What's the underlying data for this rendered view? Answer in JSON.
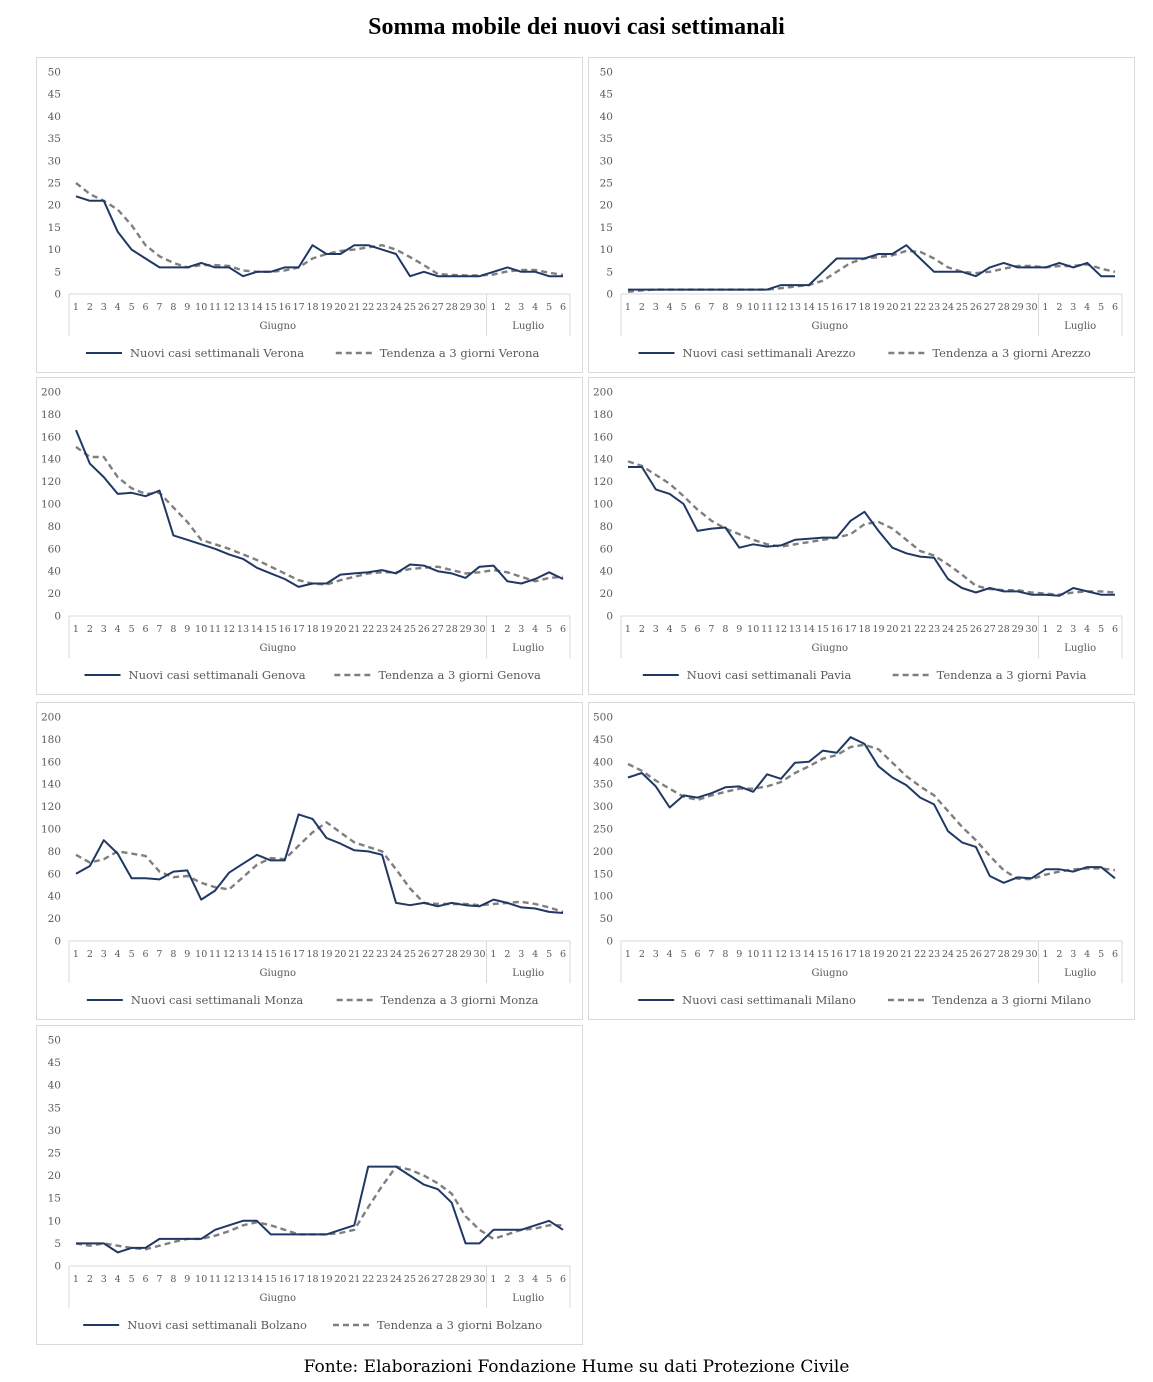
{
  "title": "Somma mobile dei nuovi casi settimanali",
  "source": "Fonte: Elaborazioni Fondazione Hume su dati Protezione Civile",
  "colors": {
    "series_actual": "#203864",
    "series_trend": "#7f7f7f",
    "axis": "#d9d9d9",
    "text": "#595959"
  },
  "chart_data": [
    {
      "type": "line",
      "x": [
        "1",
        "2",
        "3",
        "4",
        "5",
        "6",
        "7",
        "8",
        "9",
        "10",
        "11",
        "12",
        "13",
        "14",
        "15",
        "16",
        "17",
        "18",
        "19",
        "20",
        "21",
        "22",
        "23",
        "24",
        "25",
        "26",
        "27",
        "28",
        "29",
        "30",
        "1",
        "2",
        "3",
        "4",
        "5",
        "6"
      ],
      "x_groups": [
        {
          "label": "Giugno",
          "count": 30
        },
        {
          "label": "Luglio",
          "count": 6
        }
      ],
      "ylim": [
        0,
        50
      ],
      "yticks": [
        0,
        5,
        10,
        15,
        20,
        25,
        30,
        35,
        40,
        45,
        50
      ],
      "legend_position": "bottom",
      "series": [
        {
          "name": "Nuovi casi settimanali Verona",
          "style": "solid",
          "values": [
            22,
            21,
            21,
            14,
            10,
            8,
            6,
            6,
            6,
            7,
            6,
            6,
            4,
            5,
            5,
            6,
            6,
            11,
            9,
            9,
            11,
            11,
            10,
            9,
            4,
            5,
            4,
            4,
            4,
            4,
            5,
            6,
            5,
            5,
            4,
            4
          ]
        },
        {
          "name": "Tendenza a 3 giorni Verona",
          "style": "dashed",
          "values": [
            25,
            22.5,
            21,
            19,
            15.5,
            11,
            8.5,
            7,
            6,
            6.5,
            6.5,
            6.3,
            5.3,
            5,
            5,
            5.3,
            6,
            8,
            9,
            9.7,
            10,
            10.5,
            11,
            10,
            8.3,
            6.5,
            4.5,
            4.3,
            4.2,
            4.2,
            4.4,
            5.1,
            5.4,
            5.4,
            4.8,
            4.3
          ]
        }
      ]
    },
    {
      "type": "line",
      "x": [
        "1",
        "2",
        "3",
        "4",
        "5",
        "6",
        "7",
        "8",
        "9",
        "10",
        "11",
        "12",
        "13",
        "14",
        "15",
        "16",
        "17",
        "18",
        "19",
        "20",
        "21",
        "22",
        "23",
        "24",
        "25",
        "26",
        "27",
        "28",
        "29",
        "30",
        "1",
        "2",
        "3",
        "4",
        "5",
        "6"
      ],
      "x_groups": [
        {
          "label": "Giugno",
          "count": 30
        },
        {
          "label": "Luglio",
          "count": 6
        }
      ],
      "ylim": [
        0,
        50
      ],
      "yticks": [
        0,
        5,
        10,
        15,
        20,
        25,
        30,
        35,
        40,
        45,
        50
      ],
      "legend_position": "bottom",
      "series": [
        {
          "name": "Nuovi casi settimanali Arezzo",
          "style": "solid",
          "values": [
            1,
            1,
            1,
            1,
            1,
            1,
            1,
            1,
            1,
            1,
            1,
            2,
            2,
            2,
            5,
            8,
            8,
            8,
            9,
            9,
            11,
            8,
            5,
            5,
            5,
            4,
            6,
            7,
            6,
            6,
            6,
            7,
            6,
            7,
            4,
            4
          ]
        },
        {
          "name": "Tendenza a 3 giorni Arezzo",
          "style": "dashed",
          "values": [
            0.5,
            0.8,
            1,
            1,
            1,
            1,
            1,
            1,
            1,
            1,
            1,
            1.3,
            1.7,
            2,
            3,
            5,
            7,
            8,
            8.3,
            8.7,
            9.7,
            9.5,
            8,
            6,
            5,
            4.7,
            5,
            5.7,
            6.3,
            6.3,
            6,
            6.3,
            6.3,
            6.7,
            5.7,
            5
          ]
        }
      ]
    },
    {
      "type": "line",
      "x": [
        "1",
        "2",
        "3",
        "4",
        "5",
        "6",
        "7",
        "8",
        "9",
        "10",
        "11",
        "12",
        "13",
        "14",
        "15",
        "16",
        "17",
        "18",
        "19",
        "20",
        "21",
        "22",
        "23",
        "24",
        "25",
        "26",
        "27",
        "28",
        "29",
        "30",
        "1",
        "2",
        "3",
        "4",
        "5",
        "6"
      ],
      "x_groups": [
        {
          "label": "Giugno",
          "count": 30
        },
        {
          "label": "Luglio",
          "count": 6
        }
      ],
      "ylim": [
        0,
        200
      ],
      "yticks": [
        0,
        20,
        40,
        60,
        80,
        100,
        120,
        140,
        160,
        180,
        200
      ],
      "legend_position": "bottom",
      "series": [
        {
          "name": "Nuovi casi settimanali Genova",
          "style": "solid",
          "values": [
            166,
            136,
            124,
            109,
            110,
            107,
            112,
            72,
            68,
            64,
            60,
            55,
            51,
            43,
            38,
            33,
            26,
            29,
            29,
            37,
            38,
            39,
            41,
            38,
            46,
            45,
            40,
            38,
            34,
            44,
            45,
            31,
            29,
            33,
            39,
            33
          ]
        },
        {
          "name": "Tendenza a 3 giorni Genova",
          "style": "dashed",
          "values": [
            151,
            142,
            142,
            124,
            114,
            109,
            110,
            97,
            84,
            68,
            64,
            60,
            55,
            50,
            44,
            38,
            32,
            29,
            28,
            32,
            35,
            38,
            39,
            39,
            42,
            43,
            44,
            41,
            38,
            39,
            41,
            39,
            35,
            31,
            34,
            35
          ]
        }
      ]
    },
    {
      "type": "line",
      "x": [
        "1",
        "2",
        "3",
        "4",
        "5",
        "6",
        "7",
        "8",
        "9",
        "10",
        "11",
        "12",
        "13",
        "14",
        "15",
        "16",
        "17",
        "18",
        "19",
        "20",
        "21",
        "22",
        "23",
        "24",
        "25",
        "26",
        "27",
        "28",
        "29",
        "30",
        "1",
        "2",
        "3",
        "4",
        "5",
        "6"
      ],
      "x_groups": [
        {
          "label": "Giugno",
          "count": 30
        },
        {
          "label": "Luglio",
          "count": 6
        }
      ],
      "ylim": [
        0,
        200
      ],
      "yticks": [
        0,
        20,
        40,
        60,
        80,
        100,
        120,
        140,
        160,
        180,
        200
      ],
      "legend_position": "bottom",
      "series": [
        {
          "name": "Nuovi casi settimanali Pavia",
          "style": "solid",
          "values": [
            133,
            133,
            113,
            109,
            100,
            76,
            78,
            79,
            61,
            64,
            62,
            63,
            68,
            69,
            70,
            70,
            85,
            93,
            76,
            61,
            56,
            53,
            52,
            33,
            25,
            21,
            25,
            22,
            22,
            19,
            19,
            18,
            25,
            22,
            19,
            19
          ]
        },
        {
          "name": "Tendenza a 3 giorni Pavia",
          "style": "dashed",
          "values": [
            138,
            134,
            126,
            118,
            107,
            95,
            85,
            78,
            73,
            68,
            64,
            62,
            64,
            66,
            68,
            70,
            73,
            82,
            84,
            78,
            68,
            58,
            54,
            46,
            37,
            27,
            24,
            23,
            23,
            21,
            20,
            19,
            21,
            22,
            22,
            21
          ]
        }
      ]
    },
    {
      "type": "line",
      "x": [
        "1",
        "2",
        "3",
        "4",
        "5",
        "6",
        "7",
        "8",
        "9",
        "10",
        "11",
        "12",
        "13",
        "14",
        "15",
        "16",
        "17",
        "18",
        "19",
        "20",
        "21",
        "22",
        "23",
        "24",
        "25",
        "26",
        "27",
        "28",
        "29",
        "30",
        "1",
        "2",
        "3",
        "4",
        "5",
        "6"
      ],
      "x_groups": [
        {
          "label": "Giugno",
          "count": 30
        },
        {
          "label": "Luglio",
          "count": 6
        }
      ],
      "ylim": [
        0,
        200
      ],
      "yticks": [
        0,
        20,
        40,
        60,
        80,
        100,
        120,
        140,
        160,
        180,
        200
      ],
      "legend_position": "bottom",
      "series": [
        {
          "name": "Nuovi casi settimanali Monza",
          "style": "solid",
          "values": [
            60,
            67,
            90,
            78,
            56,
            56,
            55,
            62,
            63,
            37,
            45,
            61,
            69,
            77,
            72,
            72,
            113,
            109,
            92,
            87,
            81,
            80,
            77,
            34,
            32,
            34,
            31,
            34,
            32,
            31,
            37,
            34,
            30,
            29,
            26,
            25
          ]
        },
        {
          "name": "Tendenza a 3 giorni Monza",
          "style": "dashed",
          "values": [
            77,
            70,
            73,
            80,
            78,
            76,
            62,
            57,
            58,
            52,
            48,
            46,
            57,
            68,
            74,
            73,
            85,
            97,
            106,
            97,
            88,
            84,
            80,
            64,
            47,
            34,
            33,
            33,
            33,
            32,
            33,
            34,
            35,
            33,
            30,
            26
          ]
        }
      ]
    },
    {
      "type": "line",
      "x": [
        "1",
        "2",
        "3",
        "4",
        "5",
        "6",
        "7",
        "8",
        "9",
        "10",
        "11",
        "12",
        "13",
        "14",
        "15",
        "16",
        "17",
        "18",
        "19",
        "20",
        "21",
        "22",
        "23",
        "24",
        "25",
        "26",
        "27",
        "28",
        "29",
        "30",
        "1",
        "2",
        "3",
        "4",
        "5",
        "6"
      ],
      "x_groups": [
        {
          "label": "Giugno",
          "count": 30
        },
        {
          "label": "Luglio",
          "count": 6
        }
      ],
      "ylim": [
        0,
        500
      ],
      "yticks": [
        0,
        50,
        100,
        150,
        200,
        250,
        300,
        350,
        400,
        450,
        500
      ],
      "legend_position": "bottom",
      "series": [
        {
          "name": "Nuovi casi settimanali Milano",
          "style": "solid",
          "values": [
            365,
            375,
            345,
            298,
            325,
            320,
            330,
            343,
            345,
            333,
            372,
            362,
            398,
            400,
            425,
            420,
            455,
            440,
            390,
            365,
            348,
            320,
            305,
            245,
            220,
            210,
            145,
            130,
            142,
            140,
            160,
            160,
            155,
            165,
            165,
            140
          ]
        },
        {
          "name": "Tendenza a 3 giorni Milano",
          "style": "dashed",
          "values": [
            395,
            380,
            358,
            340,
            322,
            315,
            325,
            333,
            340,
            340,
            345,
            355,
            375,
            390,
            407,
            415,
            433,
            438,
            428,
            398,
            368,
            345,
            325,
            290,
            255,
            225,
            190,
            158,
            139,
            138,
            148,
            155,
            160,
            162,
            162,
            158
          ]
        }
      ]
    },
    {
      "type": "line",
      "x": [
        "1",
        "2",
        "3",
        "4",
        "5",
        "6",
        "7",
        "8",
        "9",
        "10",
        "11",
        "12",
        "13",
        "14",
        "15",
        "16",
        "17",
        "18",
        "19",
        "20",
        "21",
        "22",
        "23",
        "24",
        "25",
        "26",
        "27",
        "28",
        "29",
        "30",
        "1",
        "2",
        "3",
        "4",
        "5",
        "6"
      ],
      "x_groups": [
        {
          "label": "Giugno",
          "count": 30
        },
        {
          "label": "Luglio",
          "count": 6
        }
      ],
      "ylim": [
        0,
        50
      ],
      "yticks": [
        0,
        5,
        10,
        15,
        20,
        25,
        30,
        35,
        40,
        45,
        50
      ],
      "legend_position": "bottom",
      "series": [
        {
          "name": "Nuovi casi settimanali Bolzano",
          "style": "solid",
          "values": [
            5,
            5,
            5,
            3,
            4,
            4,
            6,
            6,
            6,
            6,
            8,
            9,
            10,
            10,
            7,
            7,
            7,
            7,
            7,
            8,
            9,
            22,
            22,
            22,
            20,
            18,
            17,
            14,
            5,
            5,
            8,
            8,
            8,
            9,
            10,
            8
          ]
        },
        {
          "name": "Tendenza a 3 giorni Bolzano",
          "style": "dashed",
          "values": [
            5,
            4.5,
            5,
            4.5,
            4,
            3.7,
            4.5,
            5.3,
            6,
            6,
            6.7,
            7.7,
            9,
            9.7,
            9,
            8,
            7,
            7,
            7,
            7.3,
            8,
            13,
            17.7,
            22,
            21.3,
            20,
            18.3,
            16,
            11,
            8,
            6,
            7,
            8,
            8.3,
            9,
            9
          ]
        }
      ]
    }
  ]
}
